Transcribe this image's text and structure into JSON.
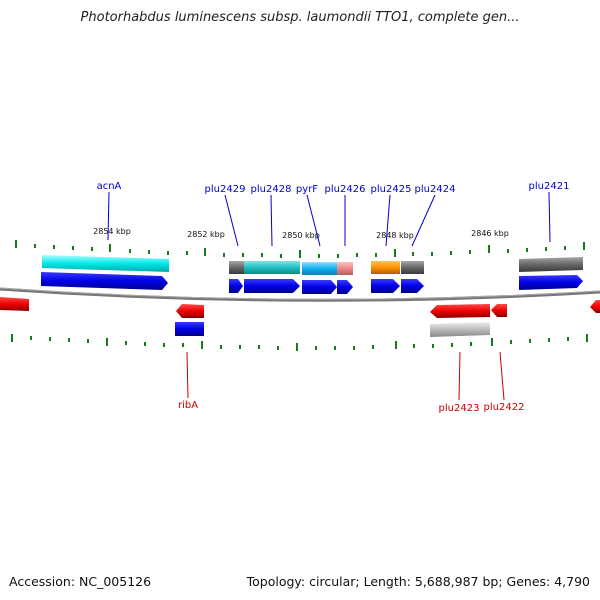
{
  "header": {
    "title": "Photorhabdus luminescens subsp. laumondii TTO1, complete gen..."
  },
  "footer": {
    "accession": "Accession: NC_005126",
    "stats": "Topology: circular; Length: 5,688,987 bp; Genes: 4,790"
  },
  "scale": {
    "labels": [
      "2854 kbp",
      "2852 kbp",
      "2850 kbp",
      "2848 kbp",
      "2846 kbp"
    ]
  },
  "genes_top": [
    {
      "name": "acnA",
      "color": "#0000cc"
    },
    {
      "name": "plu2429",
      "color": "#0000cc"
    },
    {
      "name": "plu2428",
      "color": "#0000cc"
    },
    {
      "name": "pyrF",
      "color": "#0000cc"
    },
    {
      "name": "plu2426",
      "color": "#0000cc"
    },
    {
      "name": "plu2425",
      "color": "#0000cc"
    },
    {
      "name": "plu2424",
      "color": "#0000cc"
    },
    {
      "name": "plu2421",
      "color": "#0000cc"
    }
  ],
  "genes_bottom": [
    {
      "name": "ribA",
      "color": "#cc0000"
    },
    {
      "name": "plu2423",
      "color": "#cc0000"
    },
    {
      "name": "plu2422",
      "color": "#cc0000"
    }
  ],
  "colors": {
    "forward_cds": "#0000ee",
    "reverse_cds": "#ee0000",
    "tick": "#1a7a1a",
    "backbone": "#666666"
  }
}
